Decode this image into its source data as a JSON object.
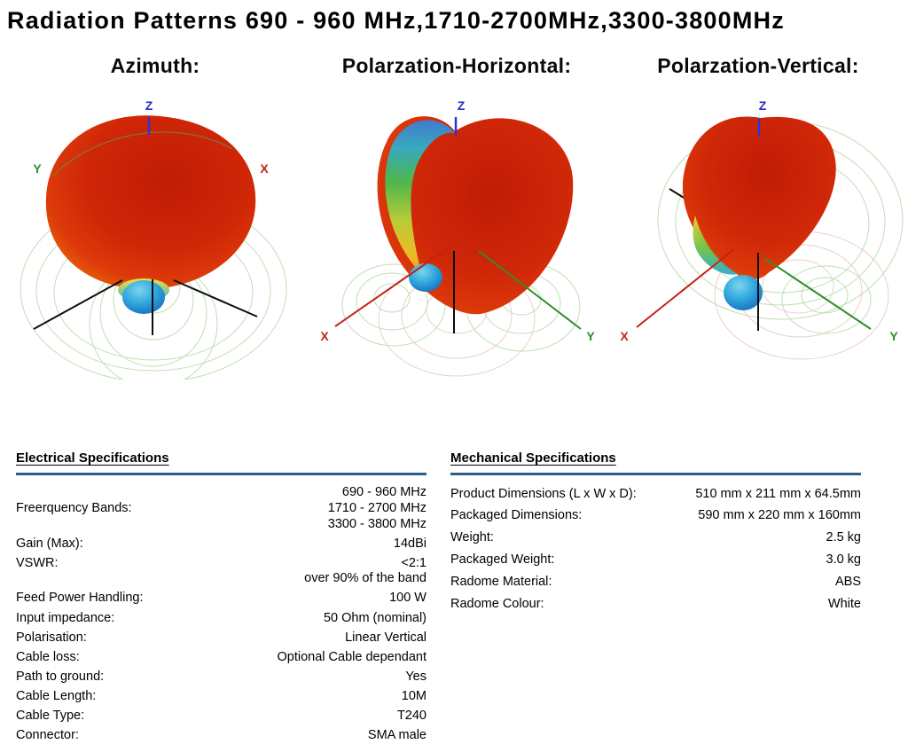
{
  "page": {
    "title": "Radiation Patterns  690 - 960 MHz,1710-2700MHz,3300-3800MHz"
  },
  "patterns": [
    {
      "label": "Azimuth:",
      "axes": {
        "x": "X",
        "y": "Y",
        "z": "Z"
      }
    },
    {
      "label": "Polarzation-Horizontal:",
      "axes": {
        "x": "X",
        "y": "Y",
        "z": "Z"
      }
    },
    {
      "label": "Polarzation-Vertical:",
      "axes": {
        "x": "X",
        "y": "Y",
        "z": "Z"
      }
    }
  ],
  "colors": {
    "axis_x": "#c22316",
    "axis_y": "#2f8f2d",
    "axis_z": "#2a2ac8",
    "divider_blue": "#2a5d8c",
    "lobe_red": "#d02708",
    "lobe_yellow": "#f0d23a",
    "back_lobe_blue": "#2fa6dd",
    "grid_green": "#b7dcab",
    "grid_pink": "#ecc8c8"
  },
  "electrical": {
    "heading": "Electrical Specifications",
    "rows": [
      {
        "label": "Freerquency Bands:",
        "value": [
          "690 - 960 MHz",
          "1710 - 2700 MHz",
          "3300 - 3800 MHz"
        ],
        "align": "center"
      },
      {
        "label": "Gain (Max):",
        "value": "14dBi"
      },
      {
        "label": "VSWR:",
        "value": [
          "<2:1",
          "over 90% of the band"
        ]
      },
      {
        "label": "Feed Power Handling:",
        "value": "100 W"
      },
      {
        "label": "Input impedance:",
        "value": "50 Ohm (nominal)"
      },
      {
        "label": "Polarisation:",
        "value": "Linear Vertical"
      },
      {
        "label": "Cable loss:",
        "value": "Optional Cable dependant"
      },
      {
        "label": "Path to ground:",
        "value": "Yes"
      },
      {
        "label": "Cable Length:",
        "value": "10M"
      },
      {
        "label": "Cable Type:",
        "value": "T240"
      },
      {
        "label": "Connector:",
        "value": "SMA male"
      }
    ]
  },
  "mechanical": {
    "heading": "Mechanical Specifications",
    "rows": [
      {
        "label": "Product Dimensions (L x W x D):",
        "value": "510 mm x 211 mm x 64.5mm"
      },
      {
        "label": "Packaged Dimensions:",
        "value": "590 mm x 220 mm x  160mm"
      },
      {
        "label": "Weight:",
        "value": "2.5 kg"
      },
      {
        "label": "Packaged Weight:",
        "value": "3.0 kg"
      },
      {
        "label": "Radome Material:",
        "value": "ABS"
      },
      {
        "label": "Radome Colour:",
        "value": "White"
      }
    ]
  }
}
